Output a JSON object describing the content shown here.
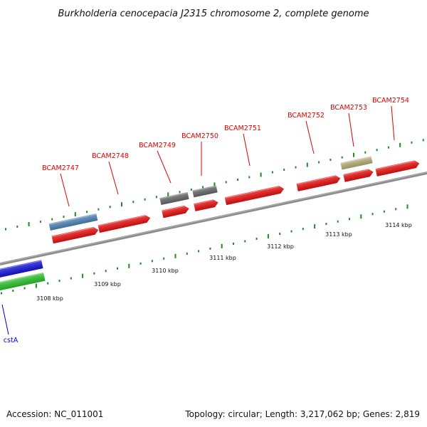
{
  "title": "Burkholderia cenocepacia J2315 chromosome 2, complete genome",
  "footer": {
    "accession": "Accession: NC_011001",
    "summary": "Topology: circular; Length: 3,217,062 bp; Genes: 2,819"
  },
  "colors": {
    "backbone": "#8c8c8c",
    "forward_gene": "#ee1111",
    "reverse_gene_blue": "#1515e0",
    "reverse_gene_green": "#2ec72e",
    "steel_feature": "#4f86bb",
    "gray_feature": "#6a6a6a",
    "khaki_feature": "#b9b47c",
    "tick": "#1f8a1f",
    "label_red": "#dd0000",
    "label_blue": "#0000cc"
  },
  "scale": {
    "unit": "kbp",
    "ticks": [
      {
        "label": "3108 kbp"
      },
      {
        "label": "3109 kbp"
      },
      {
        "label": "3110 kbp"
      },
      {
        "label": "3111 kbp"
      },
      {
        "label": "3112 kbp"
      },
      {
        "label": "3113 kbp"
      },
      {
        "label": "3114 kbp"
      }
    ]
  },
  "genes": [
    {
      "label": "BCAM2747",
      "color": "#dd0000"
    },
    {
      "label": "BCAM2748",
      "color": "#dd0000"
    },
    {
      "label": "BCAM2749",
      "color": "#dd0000"
    },
    {
      "label": "BCAM2750",
      "color": "#dd0000"
    },
    {
      "label": "BCAM2751",
      "color": "#dd0000"
    },
    {
      "label": "BCAM2752",
      "color": "#dd0000"
    },
    {
      "label": "BCAM2753",
      "color": "#dd0000"
    },
    {
      "label": "BCAM2754",
      "color": "#dd0000"
    },
    {
      "label": "cstA",
      "color": "#0000cc"
    }
  ]
}
